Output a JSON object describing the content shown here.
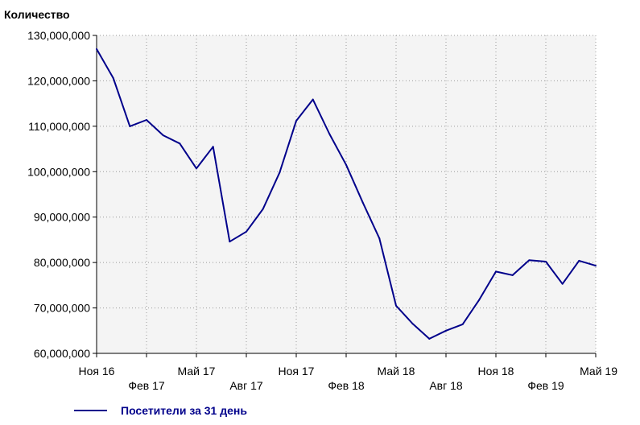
{
  "chart_data": {
    "type": "line",
    "title": "",
    "ylabel": "Количество",
    "xlabel": "",
    "ylim": [
      60000000,
      130000000
    ],
    "yticks": [
      {
        "value": 60000000,
        "label": "60,000,000"
      },
      {
        "value": 70000000,
        "label": "70,000,000"
      },
      {
        "value": 80000000,
        "label": "80,000,000"
      },
      {
        "value": 90000000,
        "label": "90,000,000"
      },
      {
        "value": 100000000,
        "label": "100,000,000"
      },
      {
        "value": 110000000,
        "label": "110,000,000"
      },
      {
        "value": 120000000,
        "label": "120,000,000"
      },
      {
        "value": 130000000,
        "label": "130,000,000"
      }
    ],
    "xticks": [
      {
        "index": 0,
        "label": "Ноя 16",
        "row": 1
      },
      {
        "index": 3,
        "label": "Фев 17",
        "row": 2
      },
      {
        "index": 6,
        "label": "Май 17",
        "row": 1
      },
      {
        "index": 9,
        "label": "Авг 17",
        "row": 2
      },
      {
        "index": 12,
        "label": "Ноя 17",
        "row": 1
      },
      {
        "index": 15,
        "label": "Фев 18",
        "row": 2
      },
      {
        "index": 18,
        "label": "Май 18",
        "row": 1
      },
      {
        "index": 21,
        "label": "Авг 18",
        "row": 2
      },
      {
        "index": 24,
        "label": "Ноя 18",
        "row": 1
      },
      {
        "index": 27,
        "label": "Фев 19",
        "row": 2
      },
      {
        "index": 30,
        "label": "Май 19",
        "row": 1
      }
    ],
    "x": [
      "Ноя 16",
      "Дек 16",
      "Янв 17",
      "Фев 17",
      "Мар 17",
      "Апр 17",
      "Май 17",
      "Июн 17",
      "Июл 17",
      "Авг 17",
      "Сен 17",
      "Окт 17",
      "Ноя 17",
      "Дек 17",
      "Янв 18",
      "Фев 18",
      "Мар 18",
      "Апр 18",
      "Май 18",
      "Июн 18",
      "Июл 18",
      "Авг 18",
      "Сен 18",
      "Окт 18",
      "Ноя 18",
      "Дек 18",
      "Янв 19",
      "Фев 19",
      "Мар 19",
      "Апр 19",
      "Май 19"
    ],
    "series": [
      {
        "name": "Посетители за 31 день",
        "color": "#00008b",
        "values": [
          127000000,
          120600000,
          110000000,
          111400000,
          108000000,
          106200000,
          100700000,
          105500000,
          84600000,
          86800000,
          91800000,
          99800000,
          111200000,
          115900000,
          108300000,
          101500000,
          93200000,
          85300000,
          70500000,
          66500000,
          63200000,
          65000000,
          66400000,
          71800000,
          78000000,
          77200000,
          80500000,
          80200000,
          75300000,
          80400000,
          79300000
        ]
      }
    ],
    "grid": true,
    "legend_position": "bottom-left"
  }
}
